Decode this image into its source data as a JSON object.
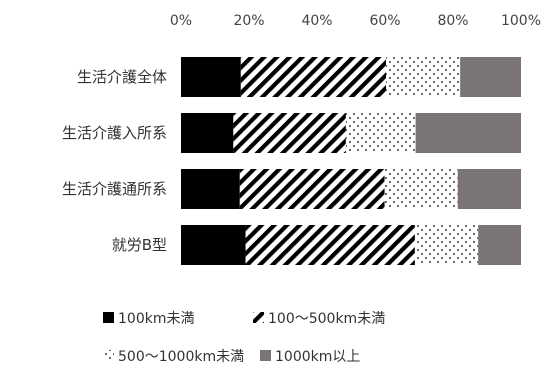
{
  "chart_data": {
    "type": "bar",
    "orientation": "horizontal",
    "stacked": true,
    "normalized_percent": true,
    "categories": [
      "生活介護全体",
      "生活介護入所系",
      "生活介護通所系",
      "就労B型"
    ],
    "series": [
      {
        "name": "100km未満",
        "values": [
          17.6,
          15.4,
          17.3,
          19.0
        ]
      },
      {
        "name": "100～500km未満",
        "values": [
          42.7,
          33.1,
          42.6,
          49.8
        ]
      },
      {
        "name": "500～1000km未満",
        "values": [
          21.8,
          20.5,
          21.5,
          18.6
        ]
      },
      {
        "name": "1000km以上",
        "values": [
          17.9,
          31.0,
          18.6,
          12.6
        ]
      }
    ],
    "x_ticks": [
      "0%",
      "20%",
      "40%",
      "60%",
      "80%",
      "100%"
    ],
    "xlim": [
      0,
      100
    ],
    "grid": false,
    "legend_position": "bottom"
  },
  "colors": {
    "series_100": "#000000",
    "series_100_500_pattern": "diagonal-stripes-black-on-white",
    "series_500_1000_pattern": "sparse-dots-black-on-white",
    "series_1000": "#7a7574"
  }
}
